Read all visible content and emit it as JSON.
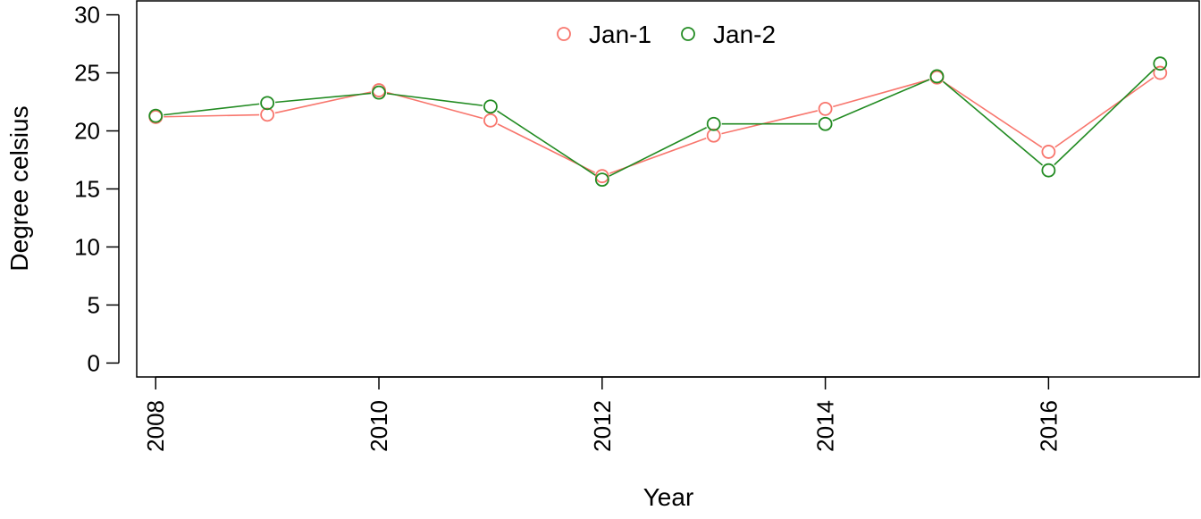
{
  "chart_data": {
    "type": "line",
    "title": "",
    "xlabel": "Year",
    "ylabel": "Degree celsius",
    "x": [
      2008,
      2009,
      2010,
      2011,
      2012,
      2013,
      2014,
      2015,
      2016,
      2017
    ],
    "xlim": [
      2007.83,
      2017.35
    ],
    "ylim": [
      -1.2,
      31.2
    ],
    "x_ticks": [
      2008,
      2010,
      2012,
      2014,
      2016
    ],
    "y_ticks": [
      0,
      5,
      10,
      15,
      20,
      25,
      30
    ],
    "x_tick_labels": [
      "2008",
      "2010",
      "2012",
      "2014",
      "2016"
    ],
    "y_tick_labels": [
      "0",
      "5",
      "10",
      "15",
      "20",
      "25",
      "30"
    ],
    "grid": false,
    "legend_position": "top-center",
    "markers": "open-circle",
    "series": [
      {
        "name": "Jan-1",
        "color": "#F8766D",
        "values": [
          21.2,
          21.4,
          23.5,
          20.9,
          16.1,
          19.6,
          21.9,
          24.6,
          18.2,
          25.0
        ]
      },
      {
        "name": "Jan-2",
        "color": "#228B22",
        "values": [
          21.3,
          22.4,
          23.3,
          22.1,
          15.8,
          20.6,
          20.6,
          24.7,
          16.6,
          25.8
        ]
      }
    ]
  }
}
